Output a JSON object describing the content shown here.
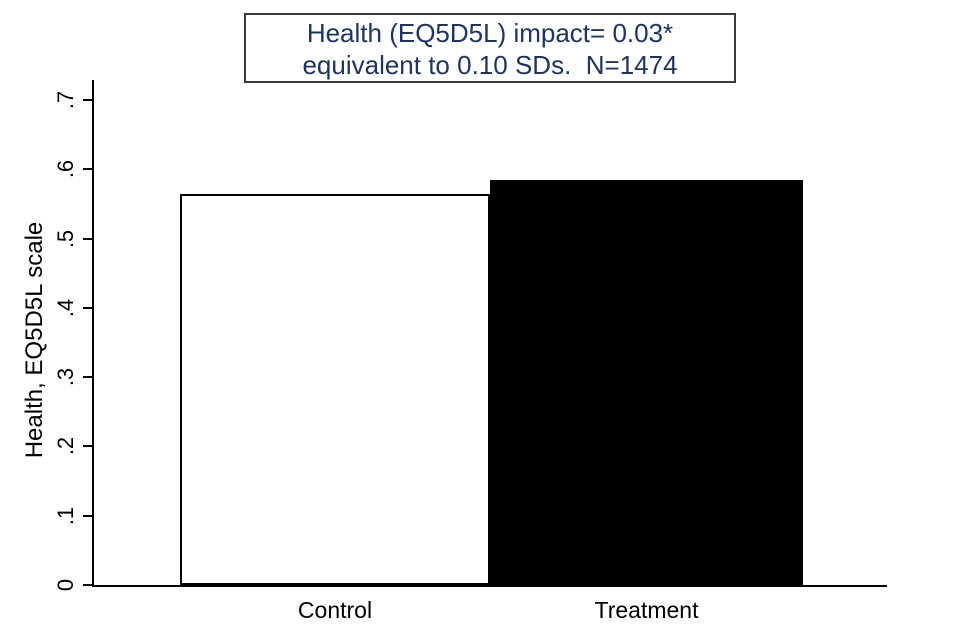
{
  "figure": {
    "background": "#ffffff",
    "axis_color": "#000000"
  },
  "chart_data": {
    "type": "bar",
    "title_line1": "Health (EQ5D5L) impact= 0.03*",
    "title_line2": "equivalent to 0.10 SDs.  N=1474",
    "title_color": "#1e3461",
    "title_box_border_color": "#3a3a3a",
    "stats": {
      "impact": "0.03*",
      "impact_in_sds": "0.10",
      "n": "1474"
    },
    "categories": [
      "Control",
      "Treatment"
    ],
    "values": [
      0.565,
      0.585
    ],
    "bar_fill_colors": [
      "#ffffff",
      "#000000"
    ],
    "bar_border_color": "#000000",
    "xlabel": "",
    "ylabel": "Health, EQ5D5L scale",
    "ylim": [
      0,
      0.7
    ],
    "yticks": [
      0,
      0.1,
      0.2,
      0.3,
      0.4,
      0.5,
      0.6,
      0.7
    ],
    "ytick_labels": [
      "0",
      ".1",
      ".2",
      ".3",
      ".4",
      ".5",
      ".6",
      ".7"
    ],
    "grid": false,
    "legend": false
  }
}
